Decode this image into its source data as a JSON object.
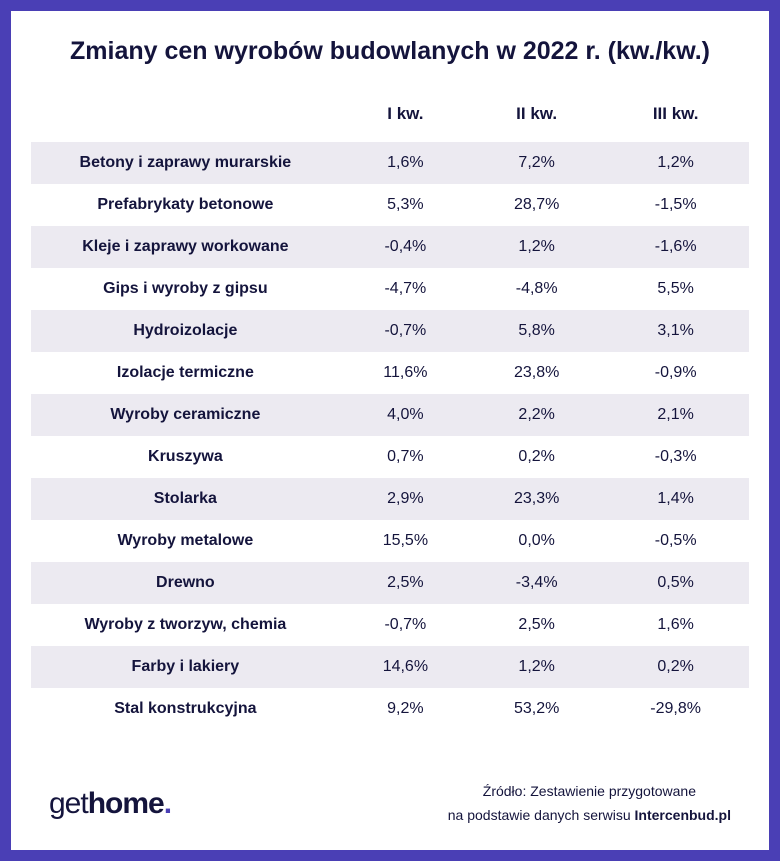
{
  "title": "Zmiany cen wyrobów budowlanych w 2022 r. (kw./kw.)",
  "columns": [
    "I kw.",
    "II kw.",
    "III kw."
  ],
  "rows": [
    {
      "label": "Betony i zaprawy murarskie",
      "values": [
        "1,6%",
        "7,2%",
        "1,2%"
      ]
    },
    {
      "label": "Prefabrykaty betonowe",
      "values": [
        "5,3%",
        "28,7%",
        "-1,5%"
      ]
    },
    {
      "label": "Kleje i zaprawy workowane",
      "values": [
        "-0,4%",
        "1,2%",
        "-1,6%"
      ]
    },
    {
      "label": "Gips i wyroby z gipsu",
      "values": [
        "-4,7%",
        "-4,8%",
        "5,5%"
      ]
    },
    {
      "label": "Hydroizolacje",
      "values": [
        "-0,7%",
        "5,8%",
        "3,1%"
      ]
    },
    {
      "label": "Izolacje termiczne",
      "values": [
        "11,6%",
        "23,8%",
        "-0,9%"
      ]
    },
    {
      "label": "Wyroby ceramiczne",
      "values": [
        "4,0%",
        "2,2%",
        "2,1%"
      ]
    },
    {
      "label": "Kruszywa",
      "values": [
        "0,7%",
        "0,2%",
        "-0,3%"
      ]
    },
    {
      "label": "Stolarka",
      "values": [
        "2,9%",
        "23,3%",
        "1,4%"
      ]
    },
    {
      "label": "Wyroby metalowe",
      "values": [
        "15,5%",
        "0,0%",
        "-0,5%"
      ]
    },
    {
      "label": "Drewno",
      "values": [
        "2,5%",
        "-3,4%",
        "0,5%"
      ]
    },
    {
      "label": "Wyroby z tworzyw, chemia",
      "values": [
        "-0,7%",
        "2,5%",
        "1,6%"
      ]
    },
    {
      "label": "Farby i lakiery",
      "values": [
        "14,6%",
        "1,2%",
        "0,2%"
      ]
    },
    {
      "label": "Stal konstrukcyjna",
      "values": [
        "9,2%",
        "53,2%",
        "-29,8%"
      ]
    }
  ],
  "logo": {
    "part1": "get",
    "part2": "home",
    "dot": "."
  },
  "source": {
    "line1": "Źródło: Zestawienie przygotowane",
    "line2_prefix": "na podstawie danych serwisu ",
    "line2_strong": "Intercenbud.pl"
  },
  "style": {
    "frame_bg": "#4a3fb5",
    "inner_bg": "#ffffff",
    "row_shade": "#eceaf1",
    "text_color": "#14143c",
    "title_fontsize": 25,
    "cell_fontsize": 16,
    "header_fontsize": 17
  }
}
